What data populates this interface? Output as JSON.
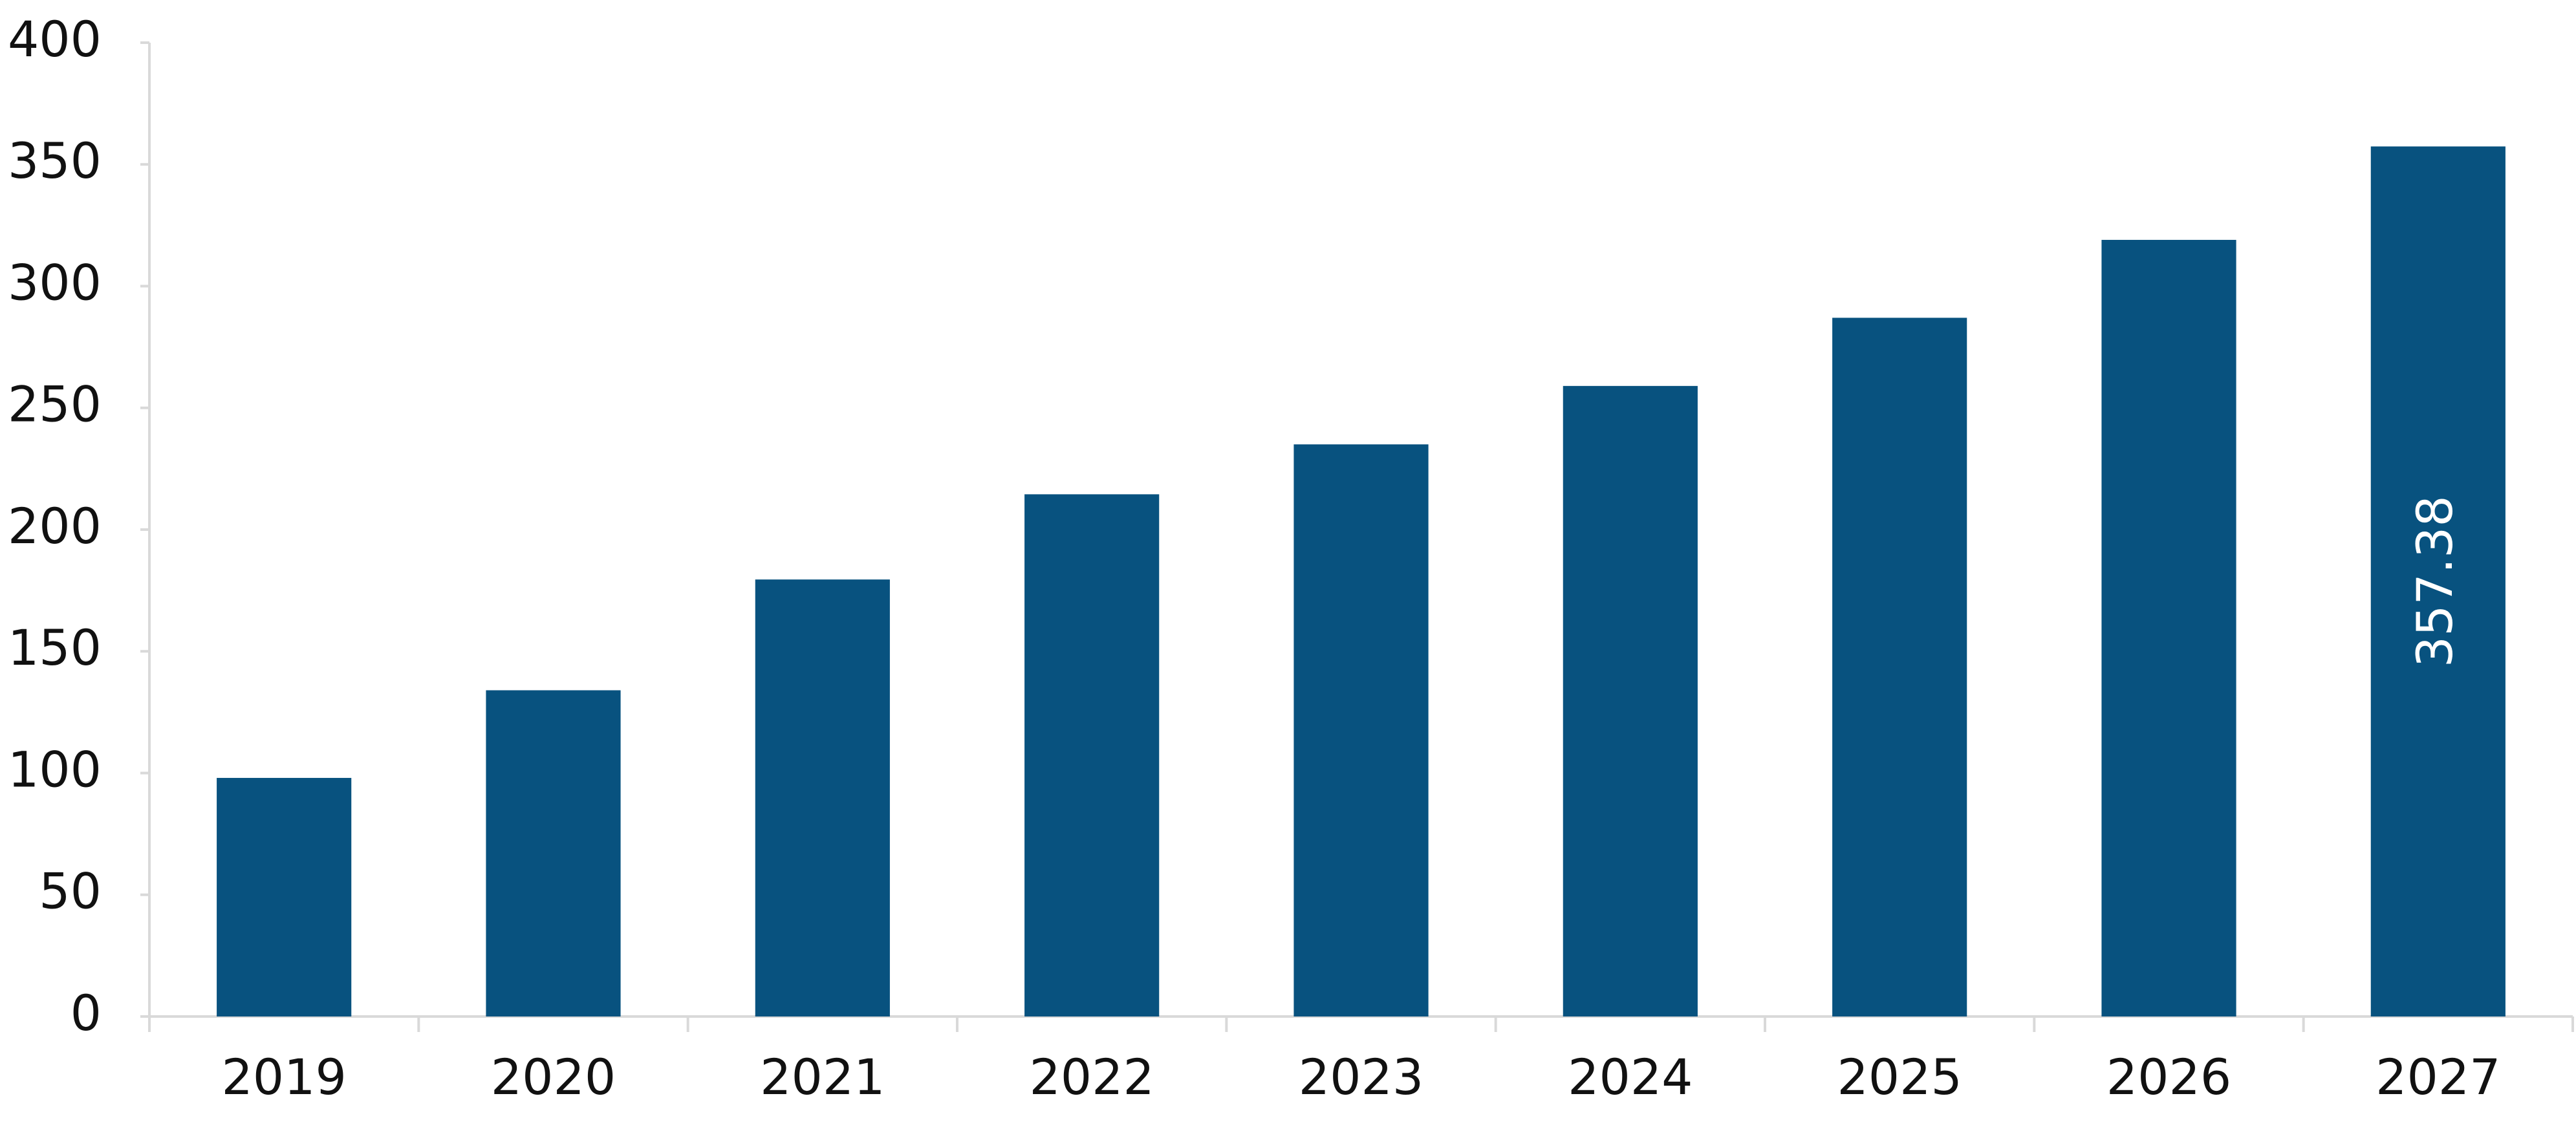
{
  "chart_data": {
    "type": "bar",
    "categories": [
      "2019",
      "2020",
      "2021",
      "2022",
      "2023",
      "2024",
      "2025",
      "2026",
      "2027"
    ],
    "values": [
      98,
      134,
      179.5,
      214.5,
      235,
      259,
      287,
      319,
      357.38
    ],
    "value_labels": [
      null,
      null,
      null,
      null,
      null,
      null,
      null,
      null,
      "357.38"
    ],
    "color": "#08527f",
    "ylim": [
      0,
      400
    ],
    "yticks": [
      0,
      50,
      100,
      150,
      200,
      250,
      300,
      350,
      400
    ],
    "grid": false
  }
}
